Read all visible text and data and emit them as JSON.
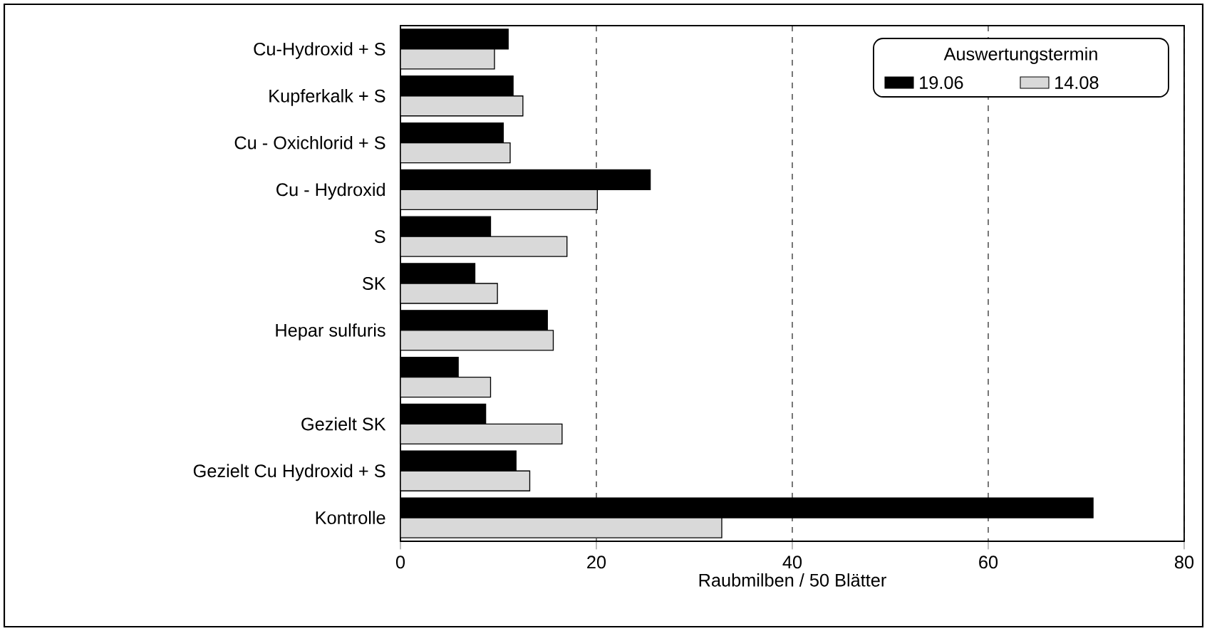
{
  "chart_data": {
    "type": "bar",
    "orientation": "horizontal",
    "categories": [
      "Cu-Hydroxid + S",
      "Kupferkalk + S",
      "Cu - Oxichlorid + S",
      "Cu - Hydroxid",
      "S",
      "SK",
      "Hepar sulfuris",
      null,
      "Gezielt SK",
      "Gezielt Cu Hydroxid + S",
      "Kontrolle"
    ],
    "series": [
      {
        "name": "19.06",
        "color": "#000000",
        "values": [
          11.0,
          11.5,
          10.5,
          25.5,
          9.2,
          7.6,
          15.0,
          5.9,
          8.7,
          11.8,
          70.7
        ]
      },
      {
        "name": "14.08",
        "color": "#d9d9d9",
        "values": [
          9.6,
          12.5,
          11.2,
          20.1,
          17.0,
          9.9,
          15.6,
          9.2,
          16.5,
          13.2,
          32.8
        ]
      }
    ],
    "xlabel": "Raubmilben / 50 Blätter",
    "legend_title": "Auswertungstermin",
    "legend": "top right",
    "xlim": [
      0,
      80
    ],
    "xticks": [
      0,
      20,
      40,
      60,
      80
    ],
    "grid": "x"
  }
}
